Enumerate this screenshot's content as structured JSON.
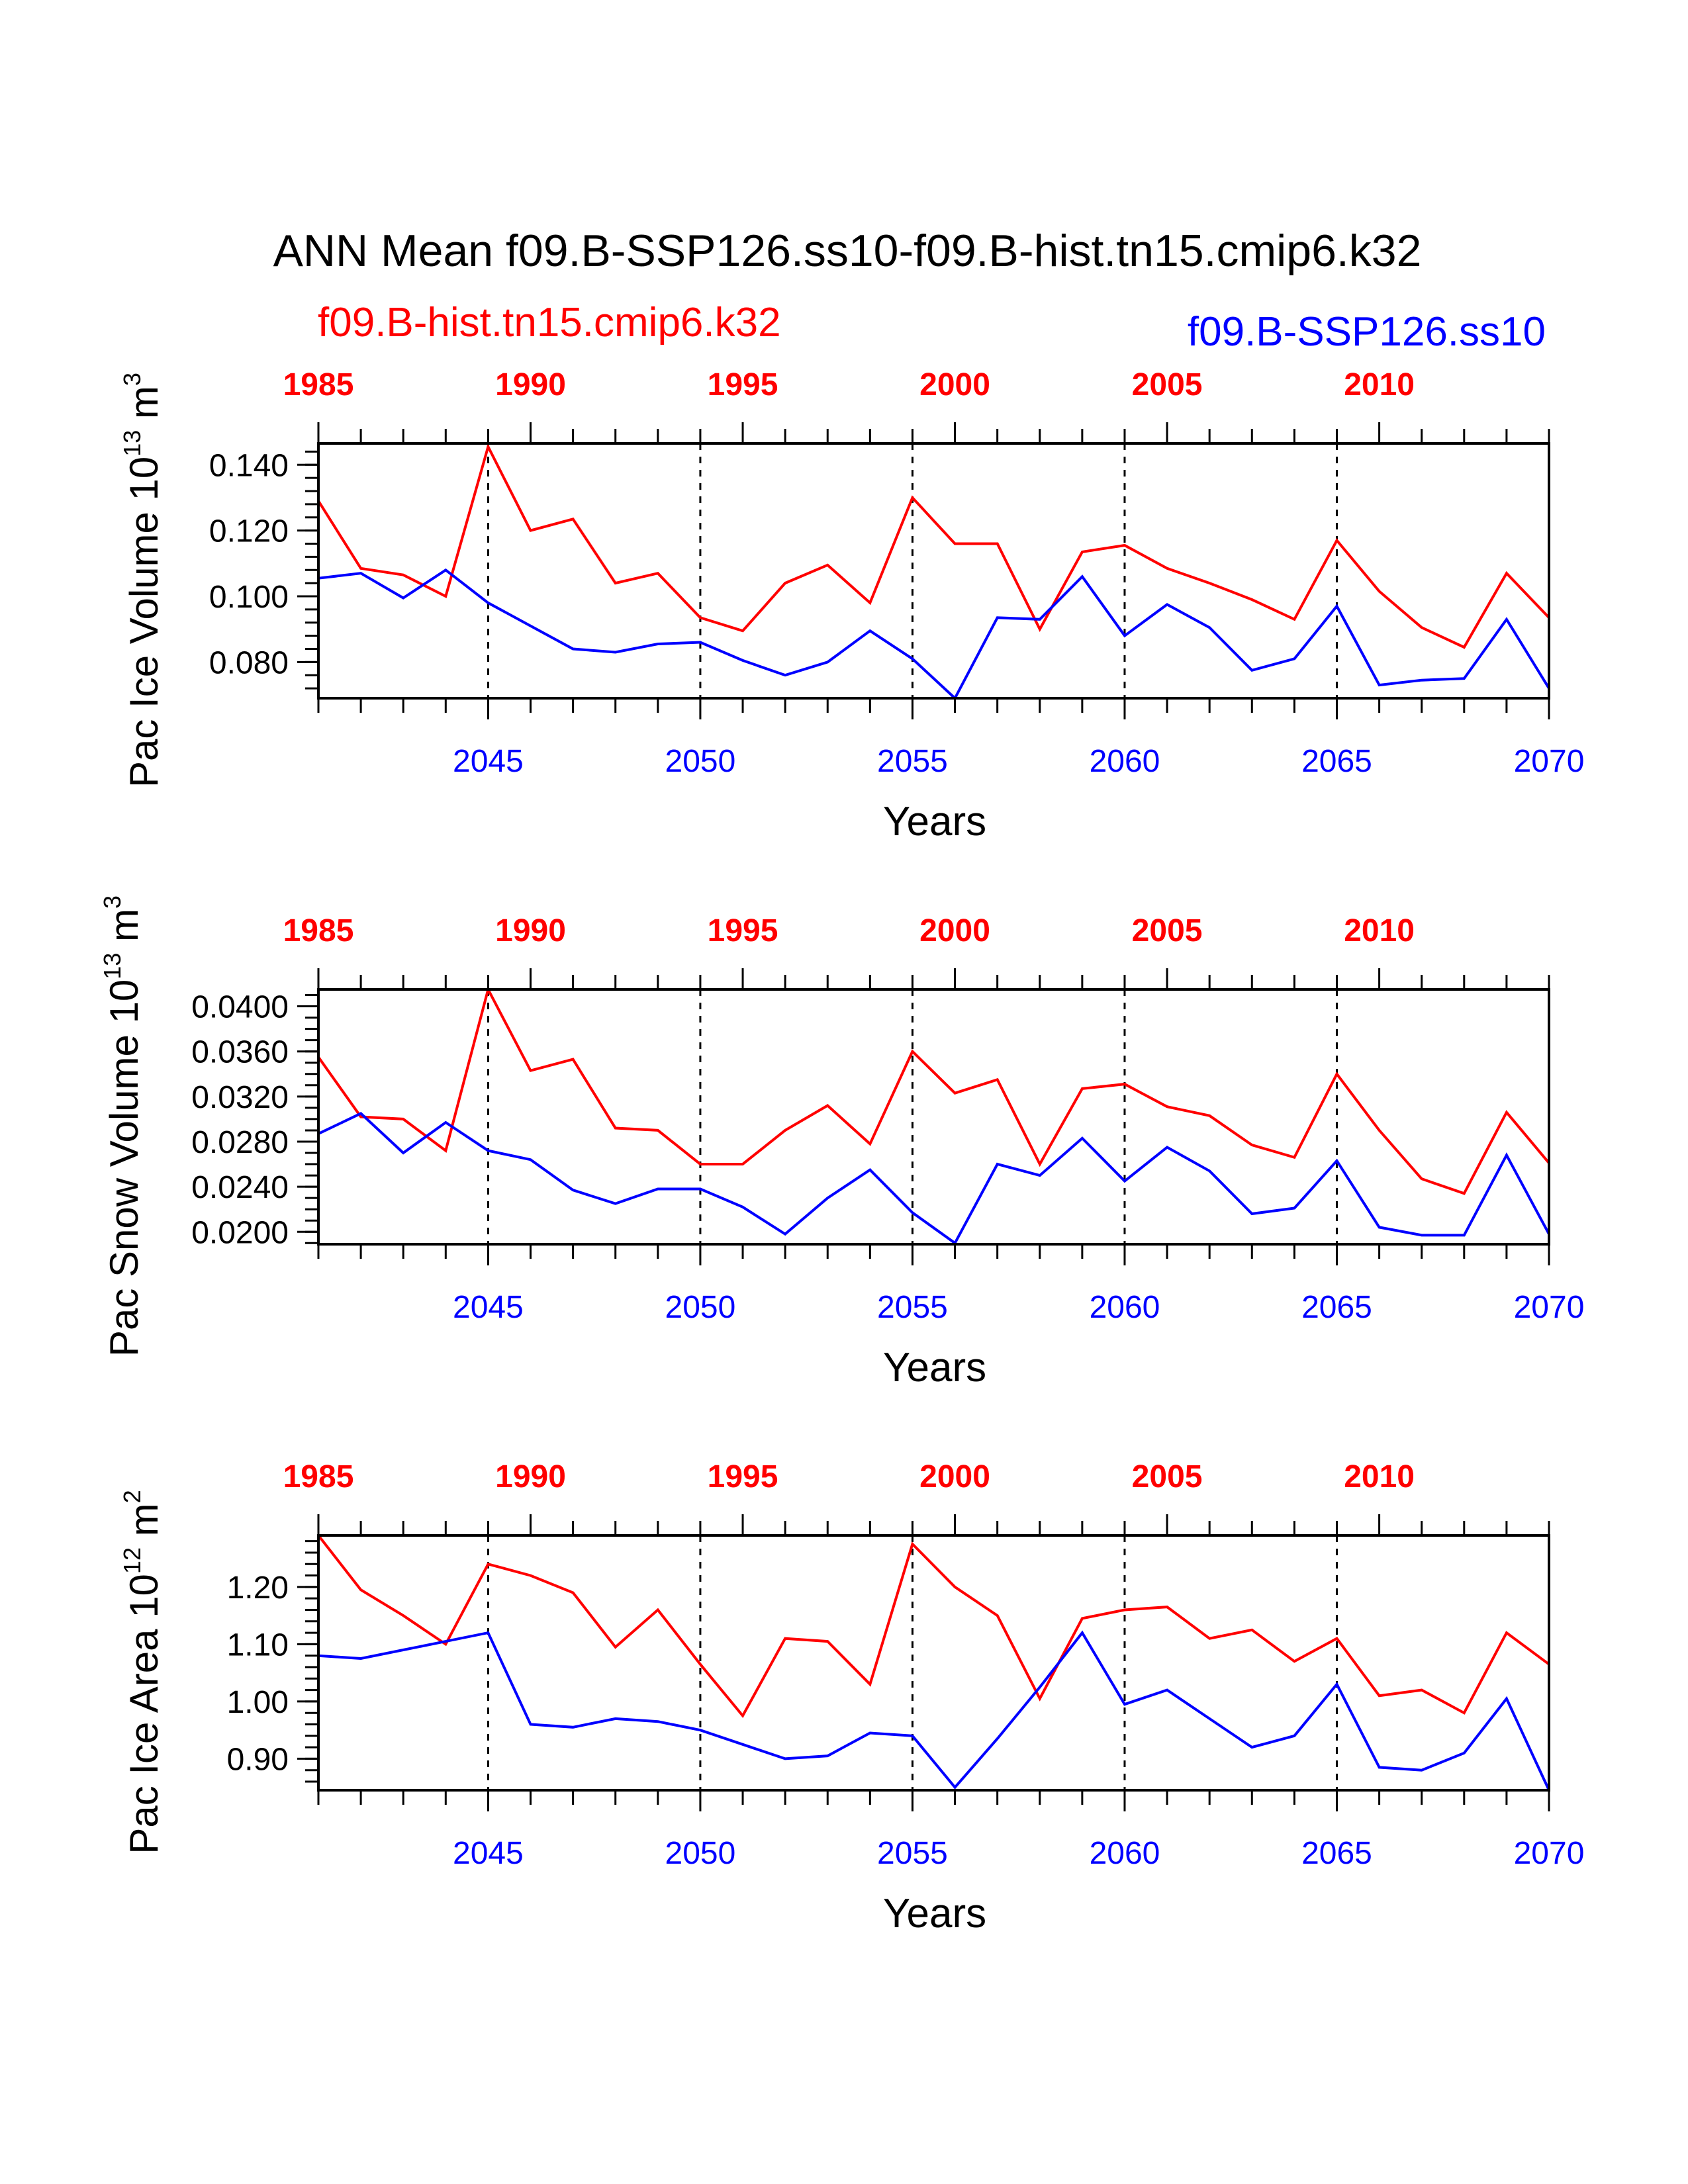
{
  "title": "ANN Mean f09.B-SSP126.ss10-f09.B-hist.tn15.cmip6.k32",
  "legend": {
    "left": "f09.B-hist.tn15.cmip6.k32",
    "right": "f09.B-SSP126.ss10"
  },
  "colors": {
    "hist": "#ff0000",
    "ssp": "#0000ff",
    "axis": "#000000"
  },
  "chart_data": [
    {
      "type": "line",
      "ylabel": "Pac Ice Volume 10",
      "ylabel_exp": "13",
      "ylabel_unit": " m",
      "ylabel_unit_exp": "3",
      "xlabel": "Years",
      "ylim": [
        0.069,
        0.1465
      ],
      "yticks": [
        0.08,
        0.1,
        0.12,
        0.14
      ],
      "ytick_labels": [
        "0.080",
        "0.100",
        "0.120",
        "0.140"
      ],
      "yminor": 0.004,
      "x_bottom": {
        "range": [
          2041,
          2070
        ],
        "ticks": [
          2045,
          2050,
          2055,
          2060,
          2065,
          2070
        ],
        "labels": [
          "2045",
          "2050",
          "2055",
          "2060",
          "2065",
          "2070"
        ]
      },
      "x_top": {
        "range": [
          1985,
          2014
        ],
        "ticks": [
          1985,
          1990,
          1995,
          2000,
          2005,
          2010
        ],
        "labels": [
          "1985",
          "1990",
          "1995",
          "2000",
          "2005",
          "2010"
        ]
      },
      "series": [
        {
          "name": "f09.B-hist.tn15.cmip6.k32",
          "values": [
            0.129,
            0.1085,
            0.1065,
            0.1,
            0.1455,
            0.12,
            0.1235,
            0.104,
            0.107,
            0.0935,
            0.0895,
            0.104,
            0.1095,
            0.098,
            0.13,
            0.116,
            0.116,
            0.09,
            0.1135,
            0.1155,
            0.1085,
            0.104,
            0.099,
            0.093,
            0.117,
            0.1015,
            0.0905,
            0.0845,
            0.107,
            0.0935
          ]
        },
        {
          "name": "f09.B-SSP126.ss10",
          "values": [
            0.1055,
            0.107,
            0.0995,
            0.108,
            0.098,
            0.091,
            0.084,
            0.083,
            0.0855,
            0.086,
            0.0805,
            0.076,
            0.08,
            0.0895,
            0.081,
            0.069,
            0.0935,
            0.093,
            0.106,
            0.088,
            0.0975,
            0.0905,
            0.0775,
            0.081,
            0.097,
            0.073,
            0.0745,
            0.075,
            0.093,
            0.072
          ]
        }
      ]
    },
    {
      "type": "line",
      "ylabel": "Pac Snow Volume 10",
      "ylabel_exp": "13",
      "ylabel_unit": " m",
      "ylabel_unit_exp": "3",
      "xlabel": "Years",
      "ylim": [
        0.0189,
        0.0415
      ],
      "yticks": [
        0.02,
        0.024,
        0.028,
        0.032,
        0.036,
        0.04
      ],
      "ytick_labels": [
        "0.0200",
        "0.0240",
        "0.0280",
        "0.0320",
        "0.0360",
        "0.0400"
      ],
      "yminor": 0.001,
      "x_bottom": {
        "range": [
          2041,
          2070
        ],
        "ticks": [
          2045,
          2050,
          2055,
          2060,
          2065,
          2070
        ],
        "labels": [
          "2045",
          "2050",
          "2055",
          "2060",
          "2065",
          "2070"
        ]
      },
      "x_top": {
        "range": [
          1985,
          2014
        ],
        "ticks": [
          1985,
          1990,
          1995,
          2000,
          2005,
          2010
        ],
        "labels": [
          "1985",
          "1990",
          "1995",
          "2000",
          "2005",
          "2010"
        ]
      },
      "series": [
        {
          "name": "f09.B-hist.tn15.cmip6.k32",
          "values": [
            0.0355,
            0.0302,
            0.03,
            0.0272,
            0.0415,
            0.0343,
            0.0353,
            0.0292,
            0.029,
            0.026,
            0.026,
            0.029,
            0.0312,
            0.0278,
            0.036,
            0.0323,
            0.0335,
            0.026,
            0.0327,
            0.0331,
            0.0311,
            0.0303,
            0.0277,
            0.0266,
            0.034,
            0.029,
            0.0247,
            0.0234,
            0.0306,
            0.0261
          ]
        },
        {
          "name": "f09.B-SSP126.ss10",
          "values": [
            0.0287,
            0.0305,
            0.027,
            0.0297,
            0.0272,
            0.0264,
            0.0237,
            0.0225,
            0.0238,
            0.0238,
            0.0222,
            0.0198,
            0.023,
            0.0255,
            0.0217,
            0.019,
            0.026,
            0.025,
            0.0283,
            0.0245,
            0.0275,
            0.0254,
            0.0216,
            0.0221,
            0.0263,
            0.0204,
            0.0197,
            0.0197,
            0.0268,
            0.0198
          ]
        }
      ]
    },
    {
      "type": "line",
      "ylabel": "Pac Ice Area 10",
      "ylabel_exp": "12",
      "ylabel_unit": " m",
      "ylabel_unit_exp": "2",
      "xlabel": "Years",
      "ylim": [
        0.845,
        1.29
      ],
      "yticks": [
        0.9,
        1.0,
        1.1,
        1.2
      ],
      "ytick_labels": [
        "0.90",
        "1.00",
        "1.10",
        "1.20"
      ],
      "yminor": 0.02,
      "x_bottom": {
        "range": [
          2041,
          2070
        ],
        "ticks": [
          2045,
          2050,
          2055,
          2060,
          2065,
          2070
        ],
        "labels": [
          "2045",
          "2050",
          "2055",
          "2060",
          "2065",
          "2070"
        ]
      },
      "x_top": {
        "range": [
          1985,
          2014
        ],
        "ticks": [
          1985,
          1990,
          1995,
          2000,
          2005,
          2010
        ],
        "labels": [
          "1985",
          "1990",
          "1995",
          "2000",
          "2005",
          "2010"
        ]
      },
      "series": [
        {
          "name": "f09.B-hist.tn15.cmip6.k32",
          "values": [
            1.29,
            1.195,
            1.15,
            1.1,
            1.24,
            1.22,
            1.19,
            1.095,
            1.16,
            1.065,
            0.975,
            1.11,
            1.105,
            1.03,
            1.275,
            1.2,
            1.15,
            1.005,
            1.145,
            1.16,
            1.165,
            1.11,
            1.125,
            1.07,
            1.11,
            1.01,
            1.02,
            0.98,
            1.12,
            1.065
          ]
        },
        {
          "name": "f09.B-SSP126.ss10",
          "values": [
            1.08,
            1.075,
            1.09,
            1.105,
            1.12,
            0.96,
            0.955,
            0.97,
            0.965,
            0.95,
            0.925,
            0.9,
            0.905,
            0.945,
            0.94,
            0.85,
            0.935,
            1.025,
            1.12,
            0.995,
            1.02,
            0.97,
            0.92,
            0.94,
            1.03,
            0.885,
            0.88,
            0.91,
            1.005,
            0.845
          ]
        }
      ]
    }
  ]
}
